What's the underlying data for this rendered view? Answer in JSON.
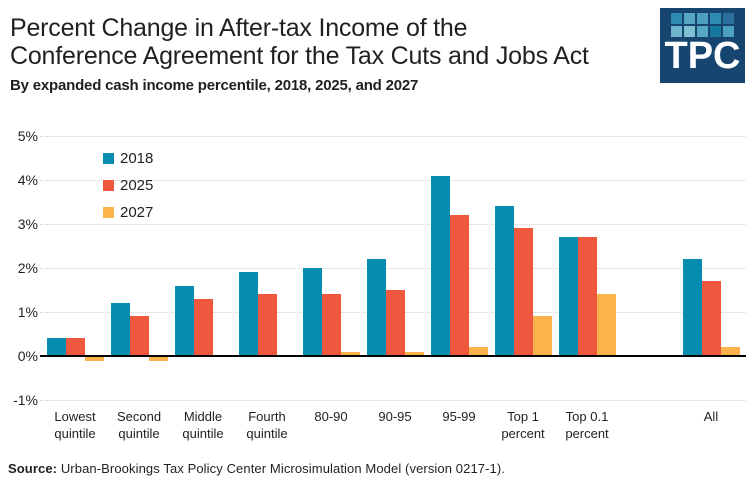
{
  "page": {
    "background": "#ffffff",
    "text_color": "#231f20"
  },
  "header": {
    "title_line1": "Percent Change in After-tax Income of the",
    "title_line2": "Conference Agreement for the Tax Cuts and Jobs Act",
    "subtitle": "By expanded cash income percentile, 2018, 2025, and 2027"
  },
  "logo": {
    "text": "TPC",
    "background": "#164570",
    "tile_colors": [
      [
        "#2f8bb3",
        "#57a7c4",
        "#4d9fc0",
        "#2f8bb3",
        "#2a6f9e"
      ],
      [
        "#6fb6cd",
        "#7fc0d2",
        "#57a7c4",
        "#15789f",
        "#4d9fc0"
      ]
    ]
  },
  "chart_data": {
    "type": "bar",
    "title": "Percent Change in After-tax Income of the Conference Agreement for the Tax Cuts and Jobs Act",
    "subtitle": "By expanded cash income percentile, 2018, 2025, and 2027",
    "categories": [
      "Lowest quintile",
      "Second quintile",
      "Middle quintile",
      "Fourth quintile",
      "80-90",
      "90-95",
      "95-99",
      "Top 1 percent",
      "Top 0.1 percent",
      "All"
    ],
    "series": [
      {
        "name": "2018",
        "color": "#058cae",
        "values": [
          0.4,
          1.2,
          1.6,
          1.9,
          2.0,
          2.2,
          4.1,
          3.4,
          2.7,
          2.2
        ]
      },
      {
        "name": "2025",
        "color": "#f0573f",
        "values": [
          0.4,
          0.9,
          1.3,
          1.4,
          1.4,
          1.5,
          3.2,
          2.9,
          2.7,
          1.7
        ]
      },
      {
        "name": "2027",
        "color": "#fbb44c",
        "values": [
          -0.1,
          -0.1,
          0.0,
          0.0,
          0.1,
          0.1,
          0.2,
          0.9,
          1.4,
          0.2
        ]
      }
    ],
    "ylim": [
      -1,
      5
    ],
    "yticks": [
      5,
      4,
      3,
      2,
      1,
      0,
      -1
    ],
    "ytick_suffix": "%",
    "grid": "horizontal-dotted",
    "gridline_color": "#cfcfcf",
    "zero_line_color": "#000000",
    "legend_position": "inside-top-left",
    "note": "Last category (All) is visually separated from the percentile groups by a gap"
  },
  "source": {
    "label": "Source:",
    "text": " Urban-Brookings Tax Policy Center Microsimulation Model (version 0217-1)."
  }
}
